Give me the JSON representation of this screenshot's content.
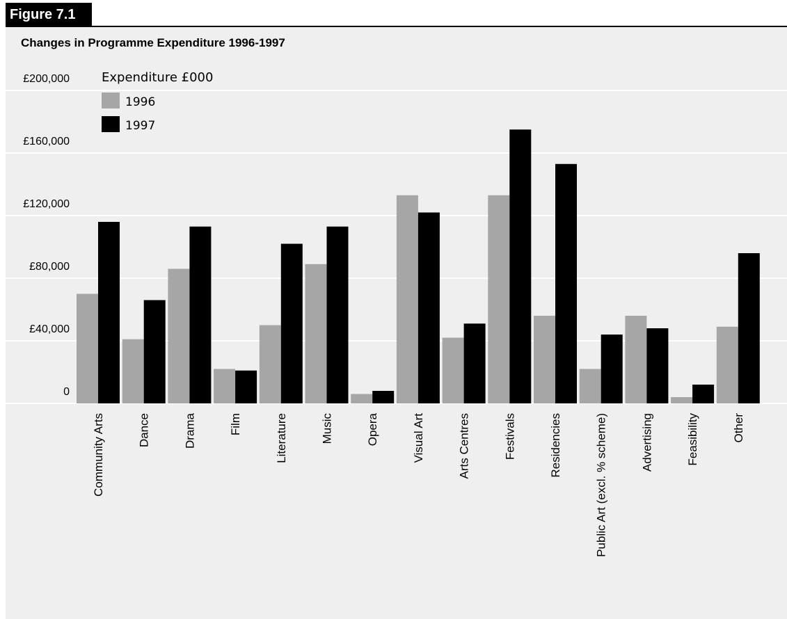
{
  "figure_tag": "Figure 7.1",
  "chart_data": {
    "type": "bar",
    "title": "Changes in Programme Expenditure 1996-1997",
    "ylabel": "Expenditure £000",
    "ylim": [
      0,
      200000
    ],
    "y_ticks": [
      {
        "value": 0,
        "label": "0"
      },
      {
        "value": 40000,
        "label": "£40,000"
      },
      {
        "value": 80000,
        "label": "£80,000"
      },
      {
        "value": 120000,
        "label": "£120,000"
      },
      {
        "value": 160000,
        "label": "£160,000"
      },
      {
        "value": 200000,
        "label": "£200,000"
      }
    ],
    "grid": true,
    "legend_position": "top-left",
    "categories": [
      "Community Arts",
      "Dance",
      "Drama",
      "Film",
      "Literature",
      "Music",
      "Opera",
      "Visual Art",
      "Arts Centres",
      "Festivals",
      "Residencies",
      "Public Art (excl. % scheme)",
      "Advertising",
      "Feasibility",
      "Other"
    ],
    "series": [
      {
        "name": "1996",
        "color": "#a6a6a6",
        "values": [
          70000,
          41000,
          86000,
          22000,
          50000,
          89000,
          6000,
          133000,
          42000,
          133000,
          56000,
          22000,
          56000,
          4000,
          49000
        ]
      },
      {
        "name": "1997",
        "color": "#000000",
        "values": [
          116000,
          66000,
          113000,
          21000,
          102000,
          113000,
          8000,
          122000,
          51000,
          175000,
          153000,
          44000,
          48000,
          12000,
          96000
        ]
      }
    ]
  }
}
